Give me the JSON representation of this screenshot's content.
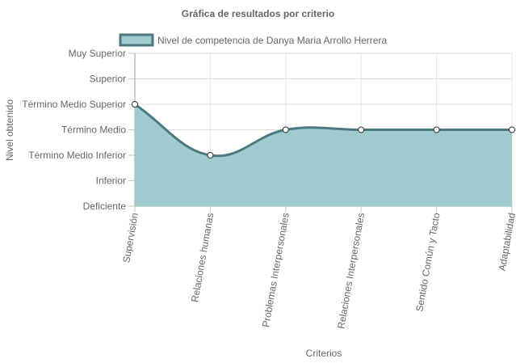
{
  "chart_data": {
    "type": "area",
    "title": "Gráfica de resultados por criterio",
    "xlabel": "Criterios",
    "ylabel": "Nivel obtenido",
    "categories": [
      "Supervisión",
      "Relaciones humanas",
      "Problemas Interpersonales",
      "Relaciones Interpersonales",
      "Sentido Común y Tacto",
      "Adaptabilidad"
    ],
    "y_levels": [
      "Deficiente",
      "Inferior",
      "Término Medio Inferior",
      "Término Medio",
      "Término Medio Superior",
      "Superior",
      "Muy Superior"
    ],
    "ylim": [
      0,
      6
    ],
    "series": [
      {
        "name": "Nivel de competencia de Danya Maria Arrollo Herrera",
        "values": [
          4,
          2,
          3,
          3,
          3,
          3
        ],
        "fill_color": "#9fcbcf",
        "line_color": "#4a7a80"
      }
    ],
    "legend_position": "top",
    "grid": true
  }
}
